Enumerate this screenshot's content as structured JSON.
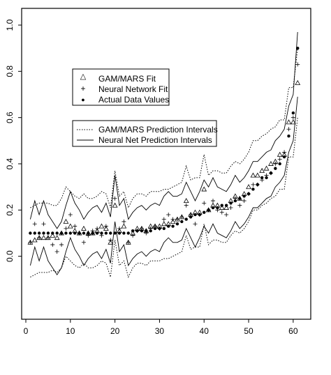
{
  "chart_data": {
    "type": "scatter",
    "title": "",
    "xlabel": "",
    "ylabel": "",
    "xlim": [
      0,
      63
    ],
    "ylim": [
      -0.2,
      1.0
    ],
    "x_ticks": [
      0,
      10,
      20,
      30,
      40,
      50,
      60
    ],
    "y_ticks": [
      0.0,
      0.2,
      0.4,
      0.6,
      0.8,
      1.0
    ],
    "x_tick_labels": [
      "0",
      "10",
      "20",
      "30",
      "40",
      "50",
      "60"
    ],
    "y_tick_labels": [
      "0.0",
      "0.2",
      "0.4",
      "0.6",
      "0.8",
      "1.0"
    ],
    "grid": false,
    "legend_points": {
      "placement": "upper-left",
      "entries": [
        {
          "symbol": "△",
          "label": "GAM/MARS Fit"
        },
        {
          "symbol": "+",
          "label": "Neural Network Fit"
        },
        {
          "symbol": "●",
          "label": "Actual Data Values"
        }
      ]
    },
    "legend_lines": {
      "placement": "upper-left",
      "entries": [
        {
          "style": "dotted",
          "label": "GAM/MARS Prediction Intervals"
        },
        {
          "style": "solid",
          "label": "Neural Net Prediction Intervals"
        }
      ]
    },
    "series": [
      {
        "name": "Actual Data Values",
        "marker": "dot",
        "x": [
          1,
          2,
          3,
          4,
          5,
          6,
          7,
          8,
          9,
          10,
          11,
          12,
          13,
          14,
          15,
          16,
          17,
          18,
          19,
          20,
          21,
          22,
          23,
          24,
          25,
          26,
          27,
          28,
          29,
          30,
          31,
          32,
          33,
          34,
          35,
          36,
          37,
          38,
          39,
          40,
          41,
          42,
          43,
          44,
          45,
          46,
          47,
          48,
          49,
          50,
          51,
          52,
          53,
          54,
          55,
          56,
          57,
          58,
          59,
          60,
          61
        ],
        "values": [
          0.1,
          0.1,
          0.1,
          0.1,
          0.1,
          0.1,
          0.1,
          0.1,
          0.1,
          0.1,
          0.1,
          0.1,
          0.1,
          0.1,
          0.1,
          0.1,
          0.1,
          0.1,
          0.1,
          0.1,
          0.1,
          0.1,
          0.1,
          0.11,
          0.11,
          0.11,
          0.11,
          0.11,
          0.12,
          0.12,
          0.12,
          0.13,
          0.13,
          0.14,
          0.15,
          0.16,
          0.17,
          0.18,
          0.18,
          0.19,
          0.2,
          0.21,
          0.21,
          0.22,
          0.22,
          0.23,
          0.24,
          0.25,
          0.26,
          0.27,
          0.29,
          0.31,
          0.34,
          0.34,
          0.36,
          0.38,
          0.4,
          0.43,
          0.52,
          0.62,
          0.9
        ]
      },
      {
        "name": "GAM/MARS Fit",
        "marker": "triangle",
        "x": [
          1,
          2,
          3,
          4,
          5,
          6,
          7,
          8,
          9,
          10,
          11,
          12,
          13,
          14,
          15,
          16,
          17,
          18,
          19,
          20,
          21,
          22,
          23,
          24,
          25,
          26,
          27,
          28,
          29,
          30,
          31,
          32,
          33,
          34,
          35,
          36,
          37,
          38,
          39,
          40,
          41,
          42,
          43,
          44,
          45,
          46,
          47,
          48,
          49,
          50,
          51,
          52,
          53,
          54,
          55,
          56,
          57,
          58,
          59,
          60,
          61
        ],
        "values": [
          0.06,
          0.07,
          0.08,
          0.08,
          0.08,
          0.09,
          0.08,
          0.1,
          0.15,
          0.13,
          0.11,
          0.1,
          0.12,
          0.1,
          0.1,
          0.11,
          0.13,
          0.12,
          0.06,
          0.22,
          0.11,
          0.13,
          0.06,
          0.1,
          0.12,
          0.12,
          0.11,
          0.13,
          0.13,
          0.13,
          0.14,
          0.14,
          0.15,
          0.16,
          0.17,
          0.24,
          0.18,
          0.19,
          0.19,
          0.29,
          0.2,
          0.22,
          0.22,
          0.21,
          0.21,
          0.24,
          0.26,
          0.25,
          0.27,
          0.3,
          0.35,
          0.35,
          0.37,
          0.38,
          0.4,
          0.41,
          0.44,
          0.44,
          0.58,
          0.58,
          0.75
        ]
      },
      {
        "name": "Neural Network Fit",
        "marker": "plus",
        "x": [
          1,
          2,
          3,
          4,
          5,
          6,
          7,
          8,
          9,
          10,
          11,
          12,
          13,
          14,
          15,
          16,
          17,
          18,
          19,
          20,
          21,
          22,
          23,
          24,
          25,
          26,
          27,
          28,
          29,
          30,
          31,
          32,
          33,
          34,
          35,
          36,
          37,
          38,
          39,
          40,
          41,
          42,
          43,
          44,
          45,
          46,
          47,
          48,
          49,
          50,
          51,
          52,
          53,
          54,
          55,
          56,
          57,
          58,
          59,
          60,
          61
        ],
        "values": [
          0.06,
          0.14,
          0.08,
          0.14,
          0.08,
          0.05,
          0.02,
          0.05,
          0.12,
          0.18,
          0.13,
          0.1,
          0.06,
          0.09,
          0.11,
          0.12,
          0.09,
          0.13,
          0.07,
          0.25,
          0.12,
          0.15,
          0.06,
          0.09,
          0.11,
          0.12,
          0.1,
          0.12,
          0.13,
          0.12,
          0.16,
          0.18,
          0.16,
          0.16,
          0.17,
          0.22,
          0.18,
          0.14,
          0.18,
          0.23,
          0.2,
          0.24,
          0.2,
          0.19,
          0.18,
          0.21,
          0.25,
          0.22,
          0.24,
          0.27,
          0.31,
          0.31,
          0.33,
          0.35,
          0.36,
          0.4,
          0.42,
          0.45,
          0.55,
          0.6,
          0.83
        ]
      },
      {
        "name": "GAM/MARS Prediction Intervals",
        "marker": "dotted-line",
        "x": [
          1,
          2,
          3,
          4,
          5,
          6,
          7,
          8,
          9,
          10,
          11,
          12,
          13,
          14,
          15,
          16,
          17,
          18,
          19,
          20,
          21,
          22,
          23,
          24,
          25,
          26,
          27,
          28,
          29,
          30,
          31,
          32,
          33,
          34,
          35,
          36,
          37,
          38,
          39,
          40,
          41,
          42,
          43,
          44,
          45,
          46,
          47,
          48,
          49,
          50,
          51,
          52,
          53,
          54,
          55,
          56,
          57,
          58,
          59,
          60,
          61
        ],
        "upper": [
          0.21,
          0.22,
          0.23,
          0.23,
          0.23,
          0.22,
          0.22,
          0.25,
          0.3,
          0.28,
          0.26,
          0.25,
          0.27,
          0.25,
          0.25,
          0.26,
          0.28,
          0.27,
          0.21,
          0.37,
          0.26,
          0.28,
          0.21,
          0.25,
          0.27,
          0.27,
          0.26,
          0.28,
          0.28,
          0.28,
          0.29,
          0.29,
          0.3,
          0.31,
          0.32,
          0.39,
          0.33,
          0.34,
          0.34,
          0.44,
          0.35,
          0.37,
          0.37,
          0.36,
          0.36,
          0.39,
          0.41,
          0.4,
          0.42,
          0.45,
          0.5,
          0.5,
          0.52,
          0.53,
          0.55,
          0.56,
          0.59,
          0.59,
          0.73,
          0.73,
          0.9
        ],
        "lower": [
          -0.09,
          -0.08,
          -0.07,
          -0.07,
          -0.07,
          -0.06,
          -0.07,
          -0.05,
          0.0,
          -0.02,
          -0.04,
          -0.05,
          -0.03,
          -0.05,
          -0.05,
          -0.04,
          -0.02,
          -0.03,
          -0.09,
          0.07,
          -0.04,
          -0.02,
          -0.09,
          -0.05,
          -0.03,
          -0.03,
          -0.04,
          -0.02,
          -0.02,
          -0.02,
          -0.01,
          -0.01,
          0.0,
          0.01,
          0.02,
          0.09,
          0.03,
          0.04,
          0.04,
          0.14,
          0.05,
          0.07,
          0.07,
          0.06,
          0.06,
          0.09,
          0.11,
          0.1,
          0.12,
          0.15,
          0.2,
          0.2,
          0.22,
          0.23,
          0.25,
          0.26,
          0.29,
          0.29,
          0.43,
          0.43,
          0.6
        ]
      },
      {
        "name": "Neural Net Prediction Intervals",
        "marker": "solid-line",
        "x": [
          1,
          2,
          3,
          4,
          5,
          6,
          7,
          8,
          9,
          10,
          11,
          12,
          13,
          14,
          15,
          16,
          17,
          18,
          19,
          20,
          21,
          22,
          23,
          24,
          25,
          26,
          27,
          28,
          29,
          30,
          31,
          32,
          33,
          34,
          35,
          36,
          37,
          38,
          39,
          40,
          41,
          42,
          43,
          44,
          45,
          46,
          47,
          48,
          49,
          50,
          51,
          52,
          53,
          54,
          55,
          56,
          57,
          58,
          59,
          60,
          61
        ],
        "upper": [
          0.16,
          0.24,
          0.18,
          0.24,
          0.18,
          0.15,
          0.12,
          0.15,
          0.22,
          0.28,
          0.23,
          0.2,
          0.16,
          0.19,
          0.21,
          0.22,
          0.19,
          0.23,
          0.17,
          0.35,
          0.22,
          0.25,
          0.16,
          0.19,
          0.21,
          0.22,
          0.2,
          0.22,
          0.23,
          0.22,
          0.26,
          0.28,
          0.26,
          0.26,
          0.27,
          0.32,
          0.28,
          0.24,
          0.28,
          0.33,
          0.3,
          0.34,
          0.3,
          0.29,
          0.28,
          0.31,
          0.35,
          0.32,
          0.34,
          0.37,
          0.41,
          0.41,
          0.43,
          0.45,
          0.46,
          0.5,
          0.52,
          0.55,
          0.65,
          0.7,
          0.97
        ],
        "lower": [
          -0.04,
          0.04,
          -0.02,
          0.04,
          -0.02,
          -0.05,
          -0.08,
          -0.05,
          0.02,
          0.08,
          0.03,
          0.0,
          -0.04,
          -0.01,
          0.01,
          0.02,
          -0.01,
          0.03,
          -0.03,
          0.15,
          0.02,
          0.05,
          -0.04,
          -0.01,
          0.01,
          0.02,
          0.0,
          0.02,
          0.03,
          0.02,
          0.06,
          0.08,
          0.06,
          0.06,
          0.07,
          0.12,
          0.08,
          0.04,
          0.08,
          0.13,
          0.1,
          0.14,
          0.1,
          0.09,
          0.08,
          0.11,
          0.15,
          0.12,
          0.14,
          0.17,
          0.21,
          0.21,
          0.23,
          0.25,
          0.26,
          0.3,
          0.32,
          0.35,
          0.45,
          0.5,
          0.69
        ]
      }
    ]
  }
}
